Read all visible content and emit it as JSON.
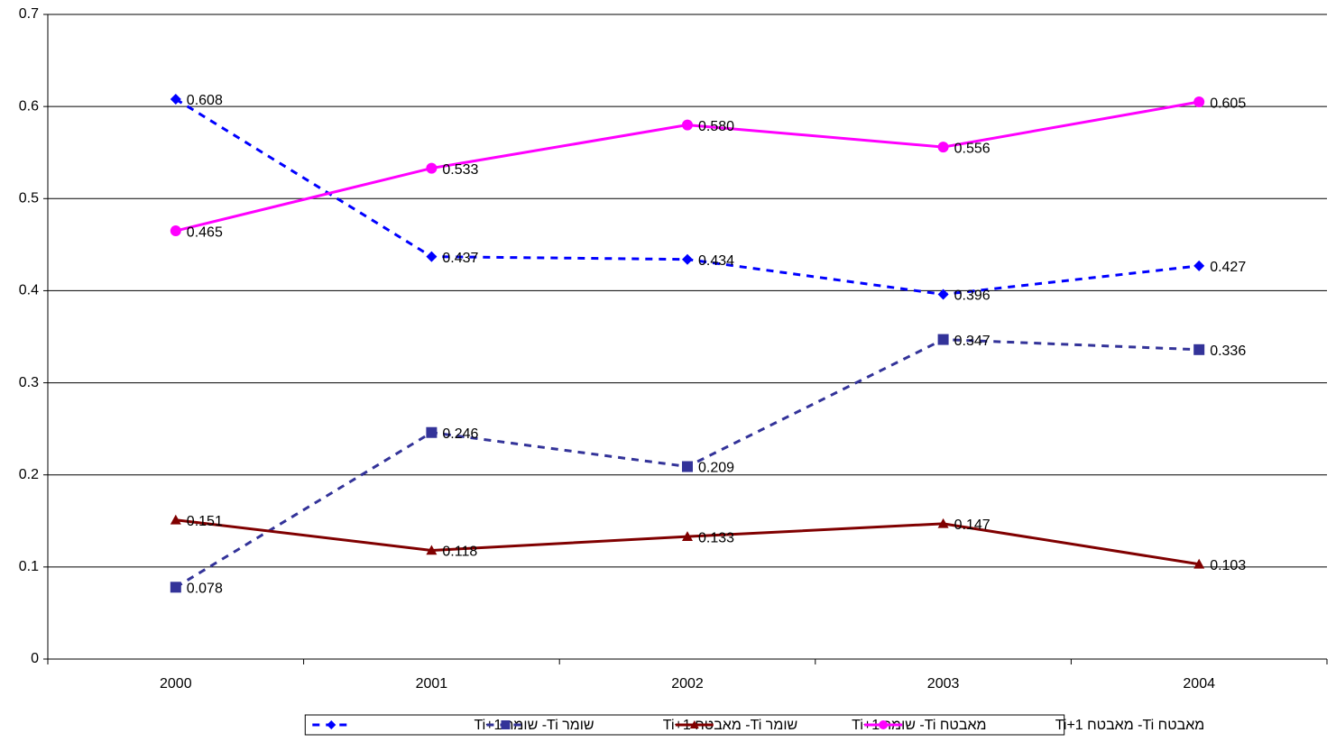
{
  "chart_data": {
    "type": "line",
    "categories": [
      "2000",
      "2001",
      "2002",
      "2003",
      "2004"
    ],
    "series": [
      {
        "name": "שומר Ti- שומר Ti+1",
        "color": "#0000ff",
        "marker": "diamond",
        "dashed": true,
        "values": [
          0.608,
          0.437,
          0.434,
          0.396,
          0.427
        ],
        "value_labels": [
          "0.608",
          "0.437",
          "0.434",
          "0.396",
          "0.427"
        ]
      },
      {
        "name": "שומר Ti- מאבטח Ti+1",
        "color": "#333399",
        "marker": "square",
        "dashed": true,
        "values": [
          0.078,
          0.246,
          0.209,
          0.347,
          0.336
        ],
        "value_labels": [
          "0.078",
          "0.246",
          "0.209",
          "0.347",
          "0.336"
        ]
      },
      {
        "name": "מאבטח Ti- שומר Ti+1",
        "color": "#800000",
        "marker": "triangle",
        "dashed": false,
        "values": [
          0.151,
          0.118,
          0.133,
          0.147,
          0.103
        ],
        "value_labels": [
          "0.151",
          "0.118",
          "0.133",
          "0.147",
          "0.103"
        ]
      },
      {
        "name": "מאבטח Ti- מאבטח Ti+1",
        "color": "#ff00ff",
        "marker": "circle",
        "dashed": false,
        "values": [
          0.465,
          0.533,
          0.58,
          0.556,
          0.605
        ],
        "value_labels": [
          "0.465",
          "0.533",
          "0.580",
          "0.556",
          "0.605"
        ]
      }
    ],
    "ylim": [
      0,
      0.7
    ],
    "yticks": [
      0,
      0.1,
      0.2,
      0.3,
      0.4,
      0.5,
      0.6,
      0.7
    ],
    "grid": true,
    "legend": "bottom"
  }
}
